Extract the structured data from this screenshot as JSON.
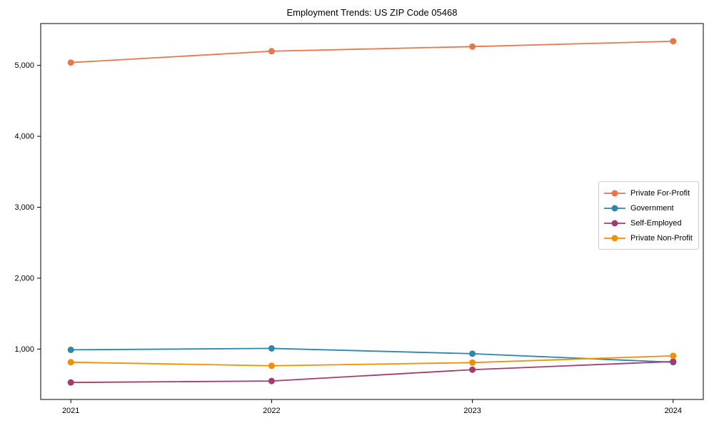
{
  "figure": {
    "background_color": "#ffffff",
    "axes_color": "#000000",
    "tick_label_color": "#000000"
  },
  "chart_data": {
    "type": "line",
    "title": "Employment Trends: US ZIP Code 05468",
    "xlabel": "",
    "ylabel": "",
    "x": [
      2021,
      2022,
      2023,
      2024
    ],
    "x_tick_labels": [
      "2021",
      "2022",
      "2023",
      "2024"
    ],
    "y_ticks": [
      1000,
      2000,
      3000,
      4000,
      5000
    ],
    "y_tick_labels": [
      "1,000",
      "2,000",
      "3,000",
      "4,000",
      "5,000"
    ],
    "xlim": [
      2020.85,
      2024.15
    ],
    "ylim": [
      290,
      5590
    ],
    "grid": false,
    "legend_position": "center right",
    "legend_entries": [
      "Private For-Profit",
      "Government",
      "Self-Employed",
      "Private Non-Profit"
    ],
    "series": [
      {
        "name": "Private For-Profit",
        "color": "#E8764A",
        "values": [
          5040,
          5200,
          5265,
          5340
        ]
      },
      {
        "name": "Government",
        "color": "#2E86AB",
        "values": [
          990,
          1010,
          935,
          815
        ]
      },
      {
        "name": "Self-Employed",
        "color": "#A23B72",
        "values": [
          530,
          550,
          710,
          825
        ]
      },
      {
        "name": "Private Non-Profit",
        "color": "#F18F01",
        "values": [
          815,
          765,
          810,
          905
        ]
      }
    ]
  }
}
